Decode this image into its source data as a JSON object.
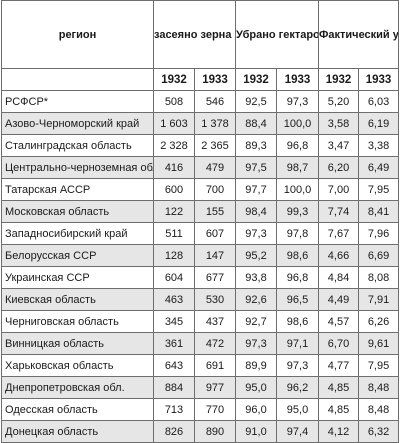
{
  "table": {
    "headers": {
      "region": "регион",
      "sown": "засеяно зерна колхозами (гектаров)",
      "harvested": "Убрано гектаров в % от засеян-ной площади",
      "yield": "Фактический урожай (в цент-нерах на гектар)"
    },
    "years": [
      "1932",
      "1933",
      "1932",
      "1933",
      "1932",
      "1933"
    ],
    "rows": [
      {
        "region": "РСФСР*",
        "sown_1932": "508",
        "sown_1933": "546",
        "harv_1932": "92,5",
        "harv_1933": "97,3",
        "yield_1932": "5,20",
        "yield_1933": "6,03"
      },
      {
        "region": "Азово-Черноморский край",
        "sown_1932": "1 603",
        "sown_1933": "1 378",
        "harv_1932": "88,4",
        "harv_1933": "100,0",
        "yield_1932": "3,58",
        "yield_1933": "6,19"
      },
      {
        "region": "Сталинградская область",
        "sown_1932": "2 328",
        "sown_1933": "2 365",
        "harv_1932": "89,3",
        "harv_1933": "96,8",
        "yield_1932": "3,47",
        "yield_1933": "3,38"
      },
      {
        "region": "Центрально-черноземная область",
        "sown_1932": "416",
        "sown_1933": "479",
        "harv_1932": "97,5",
        "harv_1933": "98,7",
        "yield_1932": "6,20",
        "yield_1933": "6,49"
      },
      {
        "region": "Татарская АССР",
        "sown_1932": "600",
        "sown_1933": "700",
        "harv_1932": "97,7",
        "harv_1933": "100,0",
        "yield_1932": "7,00",
        "yield_1933": "7,95"
      },
      {
        "region": "Московская область",
        "sown_1932": "122",
        "sown_1933": "155",
        "harv_1932": "98,4",
        "harv_1933": "99,3",
        "yield_1932": "7,74",
        "yield_1933": "8,41"
      },
      {
        "region": "Западносибирский край",
        "sown_1932": "511",
        "sown_1933": "607",
        "harv_1932": "97,3",
        "harv_1933": "97,8",
        "yield_1932": "7,67",
        "yield_1933": "7,96"
      },
      {
        "region": "Белорусская ССР",
        "sown_1932": "128",
        "sown_1933": "147",
        "harv_1932": "95,2",
        "harv_1933": "98,6",
        "yield_1932": "4,66",
        "yield_1933": "6,69"
      },
      {
        "region": "Украинская ССР",
        "sown_1932": "604",
        "sown_1933": "677",
        "harv_1932": "93,8",
        "harv_1933": "96,8",
        "yield_1932": "4,84",
        "yield_1933": "8,08"
      },
      {
        "region": "Киевская область",
        "sown_1932": "463",
        "sown_1933": "530",
        "harv_1932": "92,6",
        "harv_1933": "96,5",
        "yield_1932": "4,49",
        "yield_1933": "7,91"
      },
      {
        "region": "Черниговская область",
        "sown_1932": "345",
        "sown_1933": "437",
        "harv_1932": "92,7",
        "harv_1933": "98,6",
        "yield_1932": "4,57",
        "yield_1933": "6,26"
      },
      {
        "region": "Винницкая область",
        "sown_1932": "361",
        "harv_1932": "97,3",
        "sown_1933": "472",
        "harv_1933": "97,1",
        "yield_1932": "6,70",
        "yield_1933": "9,61"
      },
      {
        "region": "Харьковская область",
        "sown_1932": "643",
        "sown_1933": "691",
        "harv_1932": "89,9",
        "harv_1933": "97,3",
        "yield_1932": "4,77",
        "yield_1933": "7,95"
      },
      {
        "region": "Днепропетровская обл.",
        "sown_1932": "884",
        "sown_1933": "977",
        "harv_1932": "95,0",
        "harv_1933": "96,2",
        "yield_1932": "4,85",
        "yield_1933": "8,48"
      },
      {
        "region": "Одесская область",
        "sown_1932": "713",
        "sown_1933": "770",
        "harv_1932": "96,0",
        "harv_1933": "95,0",
        "yield_1932": "4,85",
        "yield_1933": "8,48"
      },
      {
        "region": "Донецкая область",
        "sown_1932": "826",
        "sown_1933": "890",
        "harv_1932": "91,0",
        "harv_1933": "97,4",
        "yield_1932": "4,12",
        "yield_1933": "6,32"
      }
    ]
  }
}
